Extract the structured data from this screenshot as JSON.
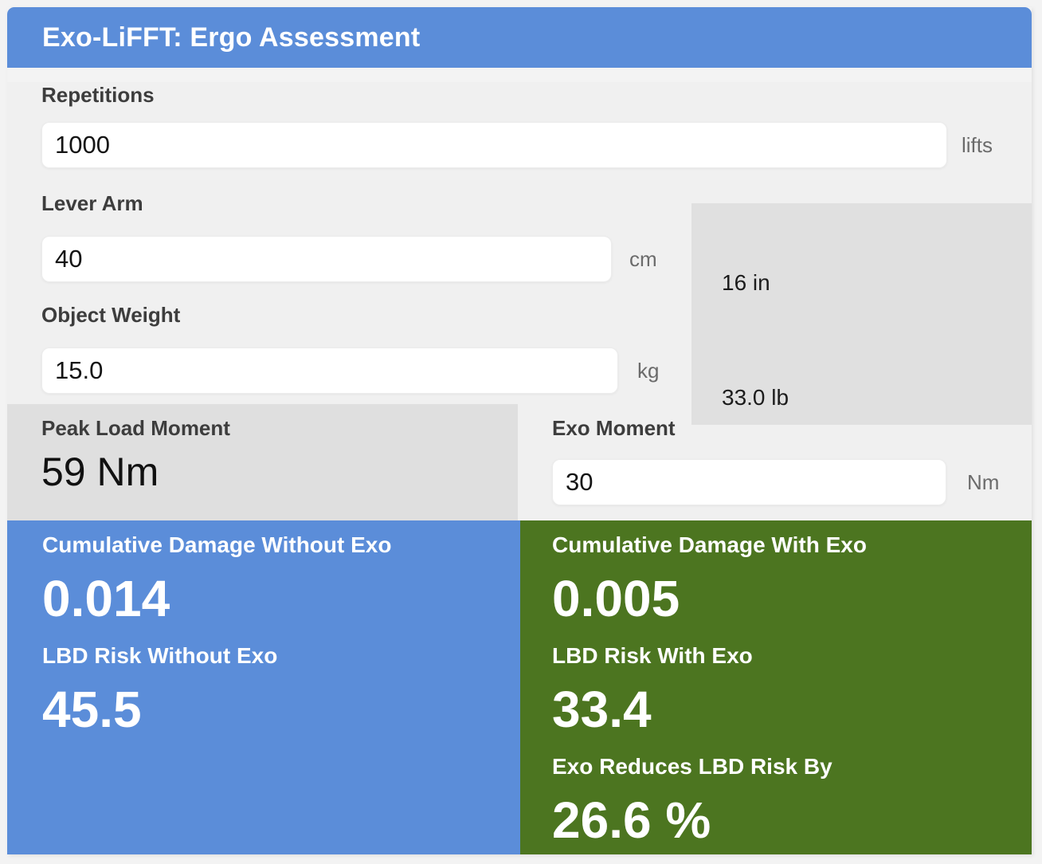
{
  "header": {
    "title": "Exo-LiFFT: Ergo Assessment"
  },
  "fields": {
    "repetitions": {
      "label": "Repetitions",
      "value": "1000",
      "unit": "lifts"
    },
    "lever_arm": {
      "label": "Lever Arm",
      "value": "40",
      "unit": "cm",
      "converted": "16 in"
    },
    "object_weight": {
      "label": "Object Weight",
      "value": "15.0",
      "unit": "kg",
      "converted": "33.0 lb"
    },
    "exo_moment": {
      "label": "Exo Moment",
      "value": "30",
      "unit": "Nm"
    }
  },
  "peak_load_moment": {
    "label": "Peak Load Moment",
    "value": "59 Nm"
  },
  "results": {
    "without_exo": {
      "damage_label": "Cumulative Damage Without Exo",
      "damage_value": "0.014",
      "risk_label": "LBD Risk Without Exo",
      "risk_value": "45.5"
    },
    "with_exo": {
      "damage_label": "Cumulative Damage With Exo",
      "damage_value": "0.005",
      "risk_label": "LBD Risk With Exo",
      "risk_value": "33.4",
      "reduction_label": "Exo Reduces LBD Risk By",
      "reduction_value": "26.6 %"
    }
  },
  "colors": {
    "accent_blue": "#5b8dd9",
    "accent_green": "#4c7520",
    "panel_gray": "#e0e0e0",
    "peak_gray": "#dfdfdf",
    "content_bg": "#f0f0f0",
    "page_bg": "#f3f3f3"
  }
}
